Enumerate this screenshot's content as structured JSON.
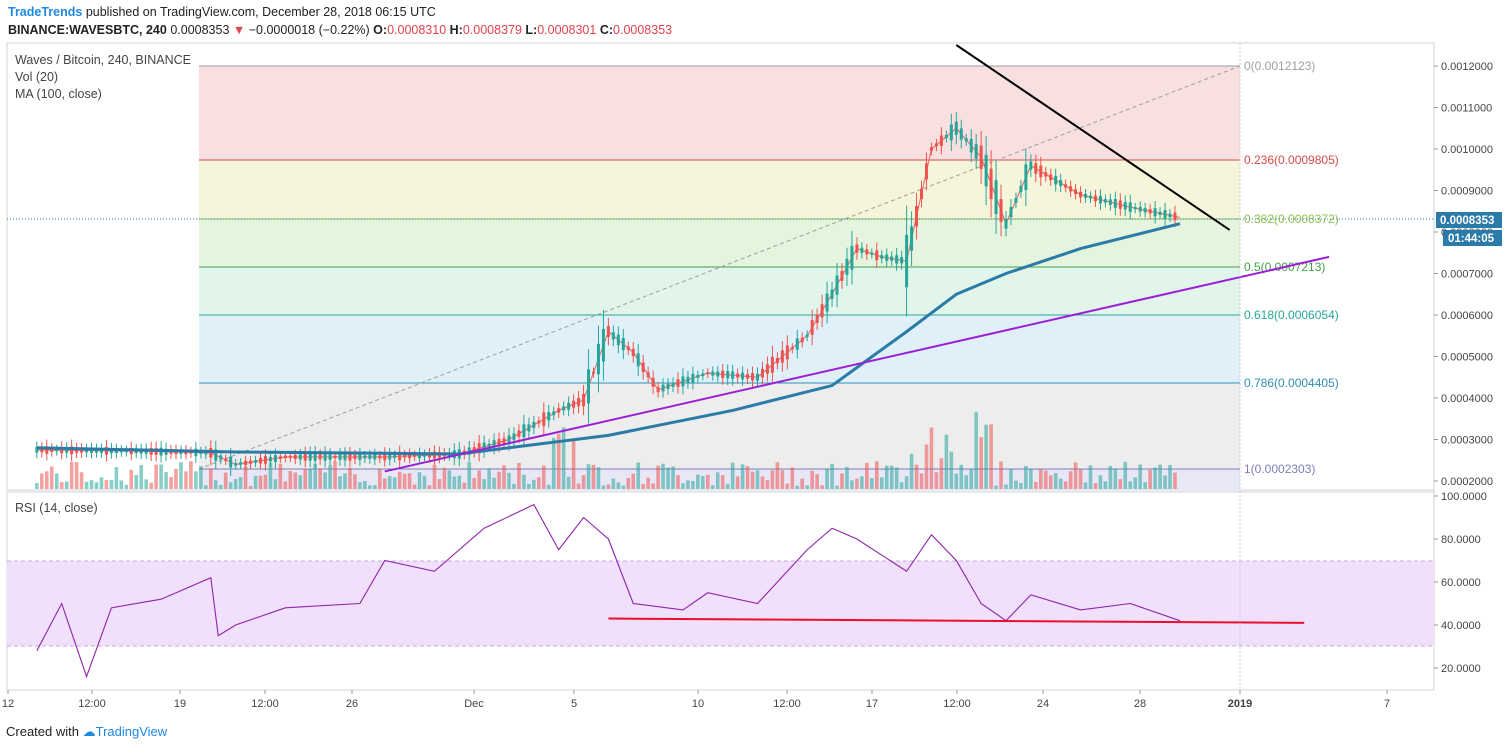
{
  "header": {
    "brand": "TradeTrends",
    "published": " published on TradingView.com, December 28, 2018 06:15 UTC",
    "symbol": "BINANCE:WAVESBTC, 240",
    "last": "0.0008353",
    "change": "−0.0000018 (−0.22%)",
    "open_label": "O:",
    "open": "0.0008310",
    "high_label": "H:",
    "high": "0.0008379",
    "low_label": "L:",
    "low": "0.0008301",
    "close_label": "C:",
    "close": "0.0008353"
  },
  "legend": {
    "main": "Waves / Bitcoin, 240, BINANCE",
    "vol": "Vol (20)",
    "ma": "MA (100, close)",
    "rsi": "RSI (14, close)"
  },
  "price_badge": "0.0008353",
  "timer_badge": "01:44:05",
  "footer": {
    "created": "Created with",
    "tv": "TradingView"
  },
  "colors": {
    "up": "#26a69a",
    "down": "#ef5350",
    "ma": "#2a7ba8",
    "support_line": "#9b1fd6",
    "resistance_line": "#000000",
    "rsi_line": "#8e24aa",
    "rsi_support": "#e8102f"
  },
  "chart_data": [
    {
      "type": "candlestick",
      "title": "Waves / Bitcoin, 240, BINANCE",
      "x_ticks": [
        "12",
        "12:00",
        "19",
        "12:00",
        "26",
        "Dec",
        "5",
        "10",
        "12:00",
        "17",
        "12:00",
        "24",
        "28",
        "2019",
        "7"
      ],
      "y_ticks": [
        "0.0002000",
        "0.0003000",
        "0.0004000",
        "0.0005000",
        "0.0006000",
        "0.0007000",
        "0.0008000",
        "0.0009000",
        "0.0010000",
        "0.0011000",
        "0.0012000"
      ],
      "ylim": [
        0.000178,
        0.000126
      ],
      "fib_levels": [
        {
          "label": "0(0.0012123)",
          "value": 0.0012123
        },
        {
          "label": "0.236(0.0009805)",
          "value": 0.0009805
        },
        {
          "label": "0.382(0.0008372)",
          "value": 0.0008372
        },
        {
          "label": "0.5(0.0007213)",
          "value": 0.0007213
        },
        {
          "label": "0.618(0.0006054)",
          "value": 0.0006054
        },
        {
          "label": "0.786(0.0004405)",
          "value": 0.0004405
        },
        {
          "label": "1(0.0002303)",
          "value": 0.0002303
        }
      ],
      "trend_close_path": [
        [
          "Nov 12",
          0.000275
        ],
        [
          "Nov 16",
          0.000272
        ],
        [
          "Nov 19",
          0.000268
        ],
        [
          "Nov 20",
          0.00024
        ],
        [
          "Nov 22",
          0.000258
        ],
        [
          "Nov 26",
          0.000258
        ],
        [
          "Nov 29",
          0.000265
        ],
        [
          "Dec 1",
          0.0003
        ],
        [
          "Dec 3",
          0.00037
        ],
        [
          "Dec 4",
          0.000395
        ],
        [
          "Dec 5",
          0.00056
        ],
        [
          "Dec 6",
          0.00051
        ],
        [
          "Dec 7",
          0.00042
        ],
        [
          "Dec 9",
          0.00046
        ],
        [
          "Dec 11",
          0.00045
        ],
        [
          "Dec 13",
          0.00055
        ],
        [
          "Dec 14",
          0.00065
        ],
        [
          "Dec 15",
          0.00076
        ],
        [
          "Dec 16",
          0.00074
        ],
        [
          "Dec 17",
          0.00073
        ],
        [
          "Dec 18",
          0.001
        ],
        [
          "Dec 19",
          0.00105
        ],
        [
          "Dec 20",
          0.00098
        ],
        [
          "Dec 21",
          0.00082
        ],
        [
          "Dec 22",
          0.00096
        ],
        [
          "Dec 24",
          0.00089
        ],
        [
          "Dec 26",
          0.00086
        ],
        [
          "Dec 28",
          0.000835
        ]
      ],
      "ma100_path": [
        [
          "Nov 12",
          0.00028
        ],
        [
          "Nov 20",
          0.00027
        ],
        [
          "Nov 29",
          0.000265
        ],
        [
          "Dec 5",
          0.00031
        ],
        [
          "Dec 10",
          0.00037
        ],
        [
          "Dec 14",
          0.00043
        ],
        [
          "Dec 17",
          0.00056
        ],
        [
          "Dec 19",
          0.00065
        ],
        [
          "Dec 21",
          0.0007
        ],
        [
          "Dec 24",
          0.00076
        ],
        [
          "Dec 28",
          0.00082
        ]
      ],
      "support_line": [
        [
          "Nov 26",
          0.000223
        ],
        [
          "Jan 3",
          0.00074
        ]
      ],
      "resistance_line": [
        [
          "Dec 19",
          0.00128
        ],
        [
          "Dec 30",
          0.000805
        ]
      ]
    },
    {
      "type": "line",
      "title": "RSI (14, close)",
      "y_ticks": [
        "20.0000",
        "40.0000",
        "60.0000",
        "80.0000",
        "100.0000"
      ],
      "ylim": [
        15,
        100
      ],
      "bands": [
        30,
        70
      ],
      "values": [
        [
          "Nov 12",
          28
        ],
        [
          "Nov 13",
          50
        ],
        [
          "Nov 14",
          16
        ],
        [
          "Nov 15",
          48
        ],
        [
          "Nov 17",
          52
        ],
        [
          "Nov 19",
          62
        ],
        [
          "Nov 19b",
          35
        ],
        [
          "Nov 20",
          40
        ],
        [
          "Nov 22",
          48
        ],
        [
          "Nov 25",
          50
        ],
        [
          "Nov 26",
          70
        ],
        [
          "Nov 28",
          65
        ],
        [
          "Nov 30",
          85
        ],
        [
          "Dec 2",
          96
        ],
        [
          "Dec 3",
          75
        ],
        [
          "Dec 4",
          90
        ],
        [
          "Dec 5",
          80
        ],
        [
          "Dec 6",
          50
        ],
        [
          "Dec 8",
          47
        ],
        [
          "Dec 9",
          55
        ],
        [
          "Dec 11",
          50
        ],
        [
          "Dec 13",
          75
        ],
        [
          "Dec 14",
          85
        ],
        [
          "Dec 15",
          80
        ],
        [
          "Dec 17",
          65
        ],
        [
          "Dec 18",
          82
        ],
        [
          "Dec 19",
          70
        ],
        [
          "Dec 20",
          50
        ],
        [
          "Dec 21",
          42
        ],
        [
          "Dec 22",
          54
        ],
        [
          "Dec 24",
          47
        ],
        [
          "Dec 26",
          50
        ],
        [
          "Dec 28",
          42
        ]
      ],
      "support_line": [
        [
          "Dec 5",
          43
        ],
        [
          "Jan 2",
          41
        ]
      ]
    }
  ]
}
